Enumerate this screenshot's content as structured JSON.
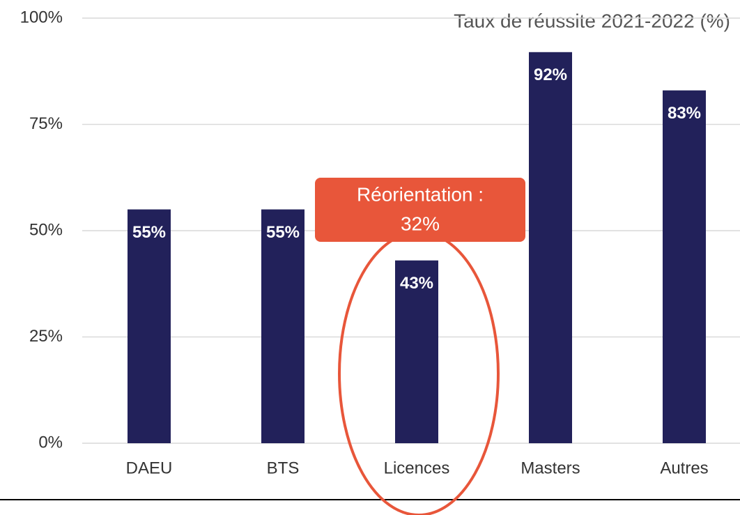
{
  "chart_data": {
    "type": "bar",
    "title": "Taux de réussite 2021-2022 (%)",
    "categories": [
      "DAEU",
      "BTS",
      "Licences",
      "Masters",
      "Autres"
    ],
    "values": [
      55,
      55,
      43,
      92,
      83
    ],
    "value_labels": [
      "55%",
      "55%",
      "43%",
      "92%",
      "83%"
    ],
    "color": "#22215a",
    "ylim": [
      0,
      100
    ],
    "yticks": [
      {
        "value": 0,
        "label": "0%"
      },
      {
        "value": 25,
        "label": "25%"
      },
      {
        "value": 50,
        "label": "50%"
      },
      {
        "value": 75,
        "label": "75%"
      },
      {
        "value": 100,
        "label": "100%"
      }
    ],
    "grid": true,
    "annotation": {
      "lines": [
        "Réorientation :",
        "32%"
      ],
      "color": "#e8563a"
    }
  }
}
